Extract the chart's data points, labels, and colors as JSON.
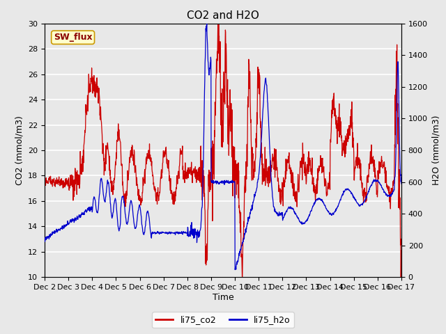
{
  "title": "CO2 and H2O",
  "xlabel": "Time",
  "ylabel_left": "CO2 (mmol/m3)",
  "ylabel_right": "H2O (mmol/m3)",
  "ylim_left": [
    10,
    30
  ],
  "ylim_right": [
    0,
    1600
  ],
  "yticks_left": [
    10,
    12,
    14,
    16,
    18,
    20,
    22,
    24,
    26,
    28,
    30
  ],
  "yticks_right": [
    0,
    200,
    400,
    600,
    800,
    1000,
    1200,
    1400,
    1600
  ],
  "bg_color": "#e8e8e8",
  "co2_color": "#cc0000",
  "h2o_color": "#0000cc",
  "grid_color": "white",
  "legend_entries": [
    "li75_co2",
    "li75_h2o"
  ],
  "sw_flux_label": "SW_flux",
  "sw_flux_bg": "#ffffcc",
  "sw_flux_border": "#cc9900",
  "title_fontsize": 11,
  "axis_label_fontsize": 9,
  "tick_fontsize": 8,
  "legend_fontsize": 9,
  "linewidth": 0.9
}
